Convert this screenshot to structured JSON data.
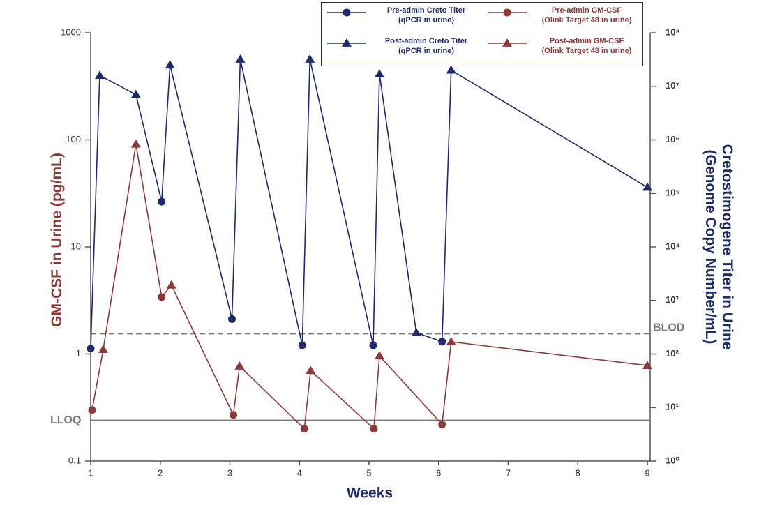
{
  "chart_data": {
    "type": "line",
    "xlabel": "Weeks",
    "ylabel": "GM-CSF in Urine (pg/mL)",
    "y2label": "Cretostimogene Titer in Urine\n(Genome Copy Number/mL)",
    "xlim": [
      1,
      9
    ],
    "xticks": [
      1,
      2,
      3,
      4,
      5,
      6,
      7,
      8,
      9
    ],
    "ylim": [
      0.1,
      1000
    ],
    "yticks": [
      0.1,
      1,
      10,
      100,
      1000
    ],
    "yscale": "log",
    "y2lim": [
      1,
      100000000
    ],
    "y2ticks": [
      {
        "value": 1,
        "label": "10⁰"
      },
      {
        "value": 10,
        "label": "10¹"
      },
      {
        "value": 100,
        "label": "10²"
      },
      {
        "value": 1000,
        "label": "10³"
      },
      {
        "value": 10000,
        "label": "10⁴"
      },
      {
        "value": 100000,
        "label": "10⁵"
      },
      {
        "value": 1000000,
        "label": "10⁶"
      },
      {
        "value": 10000000,
        "label": "10⁷"
      },
      {
        "value": 100000000,
        "label": "10⁸"
      }
    ],
    "y2scale": "log",
    "legend": "upper right",
    "series": [
      {
        "name": "Pre-admin Creto Titer\n(qPCR in urine)",
        "color": "#1f2a6b",
        "marker": "circle",
        "axis": "y2",
        "x": [
          1.0,
          2.02,
          3.03,
          4.04,
          5.06,
          6.05
        ],
        "values": [
          126,
          70000,
          450,
          145,
          145,
          170
        ]
      },
      {
        "name": "Post-admin Creto Titer\n(qPCR in urine)",
        "color": "#1f2a6b",
        "marker": "triangle",
        "axis": "y2",
        "x": [
          1.13,
          1.65,
          2.14,
          3.15,
          4.15,
          5.15,
          5.68,
          6.18,
          9
        ],
        "values": [
          16000000,
          7000000,
          25000000,
          32000000,
          32000000,
          17000000,
          250,
          20000000,
          130000
        ]
      },
      {
        "name": "Pre-admin GM-CSF\n(Olink Target 48 in urine)",
        "color": "#8b3a3a",
        "marker": "circle",
        "axis": "y",
        "x": [
          1.02,
          2.02,
          3.05,
          4.07,
          5.07,
          6.05
        ],
        "values": [
          0.3,
          3.4,
          0.27,
          0.2,
          0.2,
          0.22
        ]
      },
      {
        "name": "Post-admin GM-CSF\n(Olink Target 48 in urine)",
        "color": "#8b3a3a",
        "marker": "triangle",
        "axis": "y",
        "x": [
          1.18,
          1.65,
          2.16,
          3.14,
          4.16,
          5.15,
          6.18,
          9
        ],
        "values": [
          1.1,
          91,
          4.4,
          0.77,
          0.7,
          0.96,
          1.3,
          0.78
        ]
      }
    ],
    "reference_lines": [
      {
        "label": "BLOD",
        "value": 240,
        "axis": "y2",
        "style": "dashed",
        "color": "#777777"
      },
      {
        "label": "LLOQ",
        "value": 0.24,
        "axis": "y",
        "style": "solid",
        "color": "#777777"
      }
    ]
  }
}
